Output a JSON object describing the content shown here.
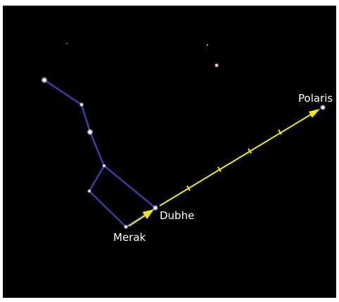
{
  "labels": {
    "polaris": "Polaris",
    "dubhe": "Dubhe",
    "merak": "Merak"
  }
}
